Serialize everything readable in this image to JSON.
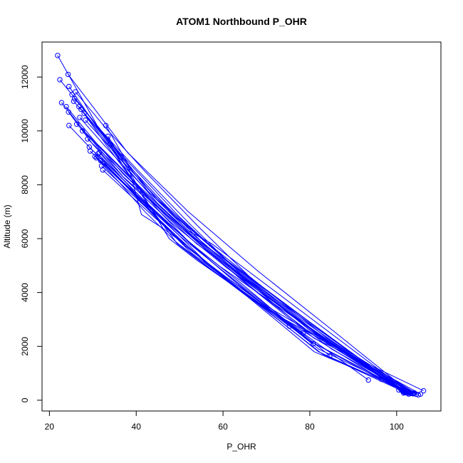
{
  "chart_data": {
    "type": "line",
    "title": "ATOM1 Northbound P_OHR",
    "xlabel": "P_OHR",
    "ylabel": "Altitude (m)",
    "xlim": [
      18.3,
      110.2
    ],
    "ylim": [
      -400,
      13300
    ],
    "x_ticks": [
      20,
      40,
      60,
      80,
      100
    ],
    "y_ticks": [
      0,
      2000,
      4000,
      6000,
      8000,
      10000,
      12000
    ],
    "grid": false,
    "legend": "none",
    "series_color": "#0000ff",
    "series": [
      {
        "x": [
          21.9,
          31.0,
          43.0,
          60.0,
          80.0,
          102.0
        ],
        "y": [
          12800,
          10200,
          7700,
          5300,
          2900,
          310
        ]
      },
      {
        "x": [
          22.4,
          28.5,
          36.0,
          49.0,
          66.0,
          84.0,
          101.5
        ],
        "y": [
          11900,
          10700,
          9000,
          6800,
          4600,
          2300,
          330
        ]
      },
      {
        "x": [
          24.3,
          30.0,
          38.0,
          52.0,
          68.0,
          86.0,
          103.0
        ],
        "y": [
          12100,
          10900,
          9200,
          7000,
          4800,
          2500,
          300
        ]
      },
      {
        "x": [
          22.8,
          29.0,
          37.0,
          51.0,
          67.0,
          85.0,
          104.0
        ],
        "y": [
          11050,
          9800,
          8300,
          6300,
          4200,
          2100,
          280
        ]
      },
      {
        "x": [
          24.5,
          29.0,
          36.0,
          47.0,
          60.0,
          78.0,
          102.5
        ],
        "y": [
          11650,
          10600,
          9100,
          7200,
          5300,
          3000,
          260
        ]
      },
      {
        "x": [
          24.4,
          30.0,
          37.5,
          48.0,
          61.0,
          80.0,
          101.8
        ],
        "y": [
          10700,
          9500,
          8200,
          6600,
          4900,
          2700,
          300
        ]
      },
      {
        "x": [
          24.5,
          31.0,
          40.0,
          50.0,
          60.0,
          75.0,
          84.6
        ],
        "y": [
          10200,
          9100,
          7600,
          6100,
          4800,
          2900,
          1650
        ]
      },
      {
        "x": [
          23.9,
          30.0,
          37.0,
          47.0,
          59.0,
          79.0,
          102.2
        ],
        "y": [
          10900,
          9700,
          8400,
          6900,
          5300,
          2600,
          320
        ]
      },
      {
        "x": [
          25.8,
          32.0,
          40.0,
          52.0,
          64.0,
          82.0,
          103.5
        ],
        "y": [
          11200,
          10000,
          8600,
          6600,
          4700,
          2400,
          250
        ]
      },
      {
        "x": [
          26.0,
          33.0,
          42.0,
          54.0,
          66.0,
          84.0,
          105.0
        ],
        "y": [
          11450,
          10100,
          8500,
          6500,
          4600,
          2300,
          200
        ]
      },
      {
        "x": [
          25.6,
          31.0,
          39.0,
          50.0,
          62.0,
          80.0,
          101.6
        ],
        "y": [
          11100,
          10100,
          8700,
          6800,
          5000,
          2700,
          270
        ]
      },
      {
        "x": [
          26.3,
          33.0,
          41.0,
          53.0,
          65.0,
          83.0,
          102.8
        ],
        "y": [
          10250,
          9200,
          7900,
          6100,
          4500,
          2300,
          230
        ]
      },
      {
        "x": [
          27.0,
          33.0,
          41.5,
          52.0,
          63.0,
          80.0,
          101.3
        ],
        "y": [
          10500,
          9400,
          7950,
          6300,
          4800,
          2600,
          350
        ]
      },
      {
        "x": [
          27.6,
          34.0,
          42.0,
          53.5,
          64.0,
          81.0,
          106.2
        ],
        "y": [
          10000,
          9000,
          7700,
          6000,
          4500,
          2300,
          350
        ]
      },
      {
        "x": [
          28.3,
          35.0,
          43.0,
          55.0,
          66.0,
          84.0,
          102.0
        ],
        "y": [
          10400,
          9200,
          7800,
          5900,
          4400,
          2100,
          310
        ]
      },
      {
        "x": [
          28.8,
          36.0,
          44.0,
          56.0,
          68.0,
          85.0,
          103.2
        ],
        "y": [
          9700,
          8600,
          7300,
          5600,
          4000,
          1900,
          260
        ]
      },
      {
        "x": [
          29.2,
          35.0,
          42.0,
          52.0,
          62.0,
          80.0,
          101.9
        ],
        "y": [
          9400,
          8500,
          7400,
          5900,
          4500,
          2200,
          280
        ]
      },
      {
        "x": [
          29.4,
          35.0,
          43.0,
          54.0,
          65.0,
          82.0,
          103.8
        ],
        "y": [
          9250,
          8400,
          7200,
          5600,
          4100,
          1900,
          240
        ]
      },
      {
        "x": [
          30.5,
          36.0,
          43.5,
          53.5,
          64.5,
          80.0,
          102.5
        ],
        "y": [
          9050,
          8200,
          7100,
          5700,
          4300,
          2200,
          300
        ]
      },
      {
        "x": [
          31.2,
          37.0,
          45.0,
          55.0,
          66.0,
          81.0,
          104.5
        ],
        "y": [
          9150,
          8200,
          6900,
          5300,
          3800,
          1800,
          220
        ]
      },
      {
        "x": [
          32.0,
          38.0,
          46.0,
          56.0,
          67.0,
          83.0,
          101.4
        ],
        "y": [
          8700,
          7800,
          6600,
          5100,
          3700,
          1700,
          340
        ]
      },
      {
        "x": [
          32.3,
          38.0,
          45.5,
          55.5,
          66.5,
          82.0,
          102.7
        ],
        "y": [
          8550,
          7700,
          6600,
          5200,
          3800,
          1800,
          290
        ]
      },
      {
        "x": [
          33.0,
          38.0,
          41.2,
          46.0,
          52.0,
          60.0,
          75.3
        ],
        "y": [
          10200,
          8800,
          6900,
          6400,
          5700,
          4600,
          2750
        ]
      },
      {
        "x": [
          33.5,
          38.0,
          42.0,
          47.6,
          54.0,
          62.0,
          78.5
        ],
        "y": [
          9800,
          8600,
          7500,
          6000,
          5200,
          4300,
          2500
        ]
      },
      {
        "x": [
          34.0,
          38.5,
          43.0,
          49.5,
          56.0,
          64.0,
          80.8
        ],
        "y": [
          9500,
          8300,
          7200,
          5800,
          5000,
          4100,
          2100
        ]
      },
      {
        "x": [
          31.5,
          37.0,
          43.0,
          50.0,
          58.0,
          68.0,
          93.5
        ],
        "y": [
          9200,
          8200,
          7100,
          5900,
          4900,
          3700,
          750
        ]
      },
      {
        "x": [
          30.8,
          36.0,
          42.0,
          49.0,
          57.0,
          66.0,
          96.5
        ],
        "y": [
          9000,
          8100,
          7000,
          5900,
          4900,
          3800,
          780
        ]
      },
      {
        "x": [
          31.8,
          37.5,
          44.0,
          51.5,
          60.5,
          70.0,
          104.0
        ],
        "y": [
          8900,
          8000,
          6900,
          5700,
          4600,
          3500,
          250
        ]
      },
      {
        "x": [
          32.6,
          38.5,
          45.0,
          52.5,
          61.5,
          72.0,
          105.5
        ],
        "y": [
          8800,
          7800,
          6700,
          5500,
          4400,
          3200,
          230
        ]
      },
      {
        "x": [
          28.0,
          34.0,
          40.0,
          46.0,
          52.0,
          59.0,
          100.5
        ],
        "y": [
          10650,
          9400,
          8000,
          6900,
          5900,
          5000,
          380
        ]
      },
      {
        "x": [
          27.3,
          33.0,
          39.5,
          46.5,
          54.0,
          62.0,
          102.3
        ],
        "y": [
          10800,
          9500,
          8100,
          6900,
          5800,
          4900,
          300
        ]
      },
      {
        "x": [
          26.8,
          32.5,
          38.5,
          45.0,
          52.0,
          58.0,
          101.0
        ],
        "y": [
          10900,
          9800,
          8500,
          7300,
          6200,
          5500,
          400
        ]
      },
      {
        "x": [
          25.2,
          31.5,
          38.0,
          45.0,
          52.0,
          57.5,
          103.0
        ],
        "y": [
          11350,
          10100,
          8800,
          7400,
          6300,
          5800,
          280
        ]
      }
    ]
  }
}
